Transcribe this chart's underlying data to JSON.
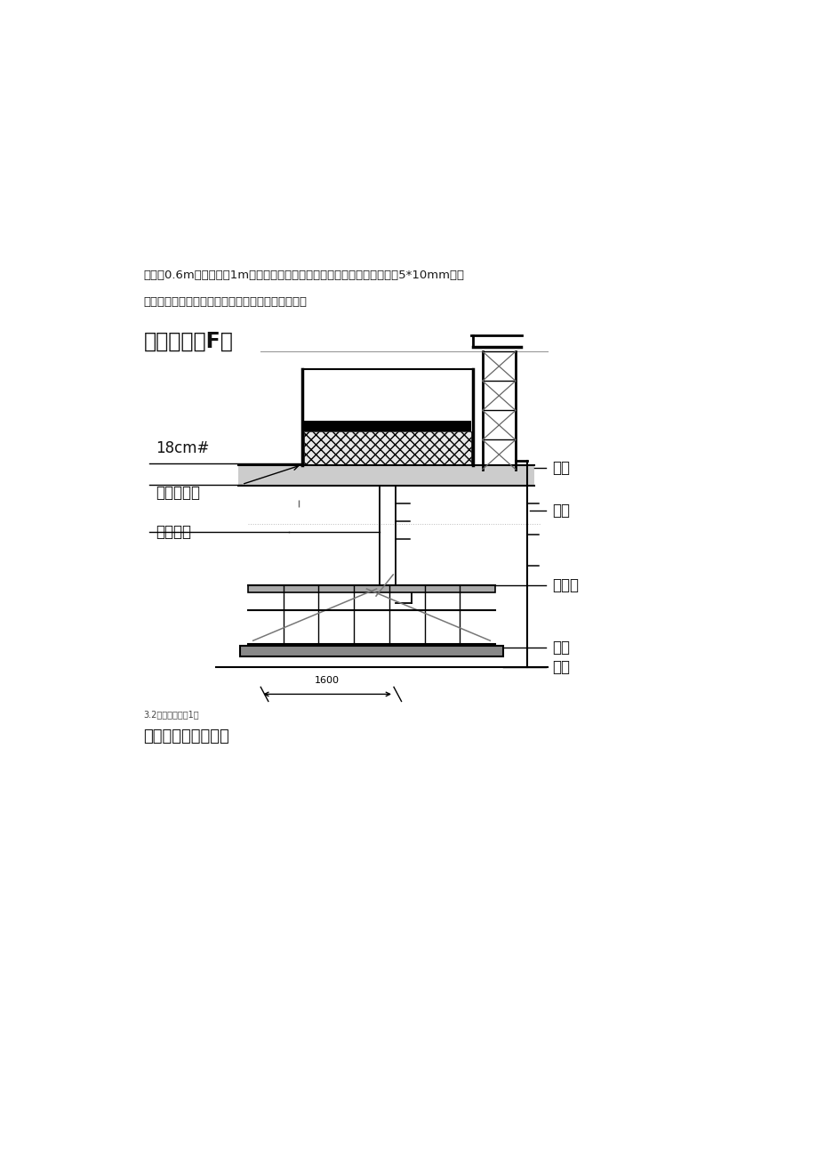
{
  "background_color": "#ffffff",
  "page_width": 9.2,
  "page_height": 13.03,
  "header_text_line1": "杆间距0.6m，立杆步距1m，四周加设竖向剪刀撑。立杆顶部及底部均设置5*10mm通长",
  "header_text_line2": "垫木，搭设范围根据现场施工升降机平面尺寸确定。",
  "section_title": "货用施工什F车",
  "caption_small": "3.2架体立面图第1页",
  "caption_large": "脚手架支撑立面简图",
  "label_18cm": "18cm#",
  "label_dizxia": "地下室顶板",
  "label_jiandao": "剪刀撑一",
  "label_dimu": "垫木",
  "label_ligan": "立杆",
  "label_shuiping": "水平杆",
  "label_jichu": "基础",
  "label_diban": "底板",
  "dim_label": "1600"
}
